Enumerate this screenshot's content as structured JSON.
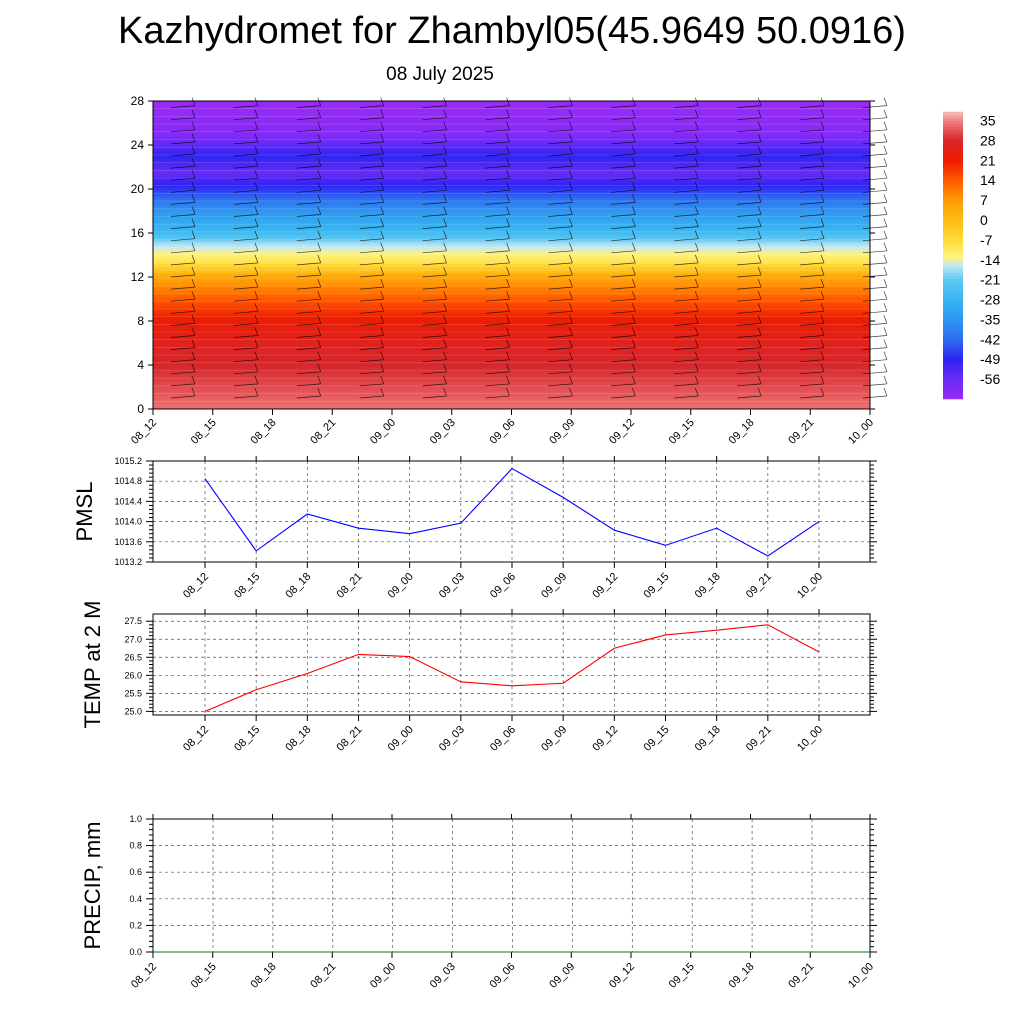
{
  "title": "Kazhydromet for Zhambyl05(45.9649 50.0916)",
  "subtitle": "08 July 2025",
  "chart_data": [
    {
      "type": "heatmap",
      "title": "",
      "xlabel": "",
      "ylabel": "",
      "x_tick_labels": [
        "08_12",
        "08_15",
        "08_18",
        "08_21",
        "09_00",
        "09_03",
        "09_06",
        "09_09",
        "09_12",
        "09_15",
        "09_18",
        "09_21",
        "10_00"
      ],
      "y_ticks": [
        0,
        4,
        8,
        12,
        16,
        20,
        24,
        28
      ],
      "ylim": [
        0,
        28
      ],
      "levels_temperature": [
        {
          "level": 0,
          "value": 34
        },
        {
          "level": 2,
          "value": 31
        },
        {
          "level": 4,
          "value": 28
        },
        {
          "level": 6,
          "value": 26
        },
        {
          "level": 8,
          "value": 22
        },
        {
          "level": 10,
          "value": 14
        },
        {
          "level": 12,
          "value": 5
        },
        {
          "level": 13.5,
          "value": -10
        },
        {
          "level": 15,
          "value": -17
        },
        {
          "level": 16,
          "value": -26
        },
        {
          "level": 18,
          "value": -35
        },
        {
          "level": 20,
          "value": -47
        },
        {
          "level": 21.5,
          "value": -56
        },
        {
          "level": 23,
          "value": -49
        },
        {
          "level": 25,
          "value": -60
        },
        {
          "level": 28,
          "value": -63
        }
      ],
      "colorbar_labels": [
        "35",
        "28",
        "21",
        "14",
        "7",
        "0",
        "-7",
        "-14",
        "-21",
        "-28",
        "-35",
        "-42",
        "-49",
        "-56"
      ],
      "colorbar_range": [
        -63,
        38
      ],
      "colorbar_stops": [
        {
          "value": -63,
          "color": "#9a2bf5"
        },
        {
          "value": -56,
          "color": "#6a2bf7"
        },
        {
          "value": -49,
          "color": "#2e23f2"
        },
        {
          "value": -42,
          "color": "#2f6cf0"
        },
        {
          "value": -35,
          "color": "#2e97f2"
        },
        {
          "value": -28,
          "color": "#36b4f2"
        },
        {
          "value": -21,
          "color": "#5fc9f2"
        },
        {
          "value": -16,
          "color": "#bfe8f5"
        },
        {
          "value": -13,
          "color": "#fff27a"
        },
        {
          "value": -7,
          "color": "#ffdc3a"
        },
        {
          "value": 0,
          "color": "#ffbd14"
        },
        {
          "value": 7,
          "color": "#ff9a05"
        },
        {
          "value": 14,
          "color": "#ff5a00"
        },
        {
          "value": 21,
          "color": "#ef1b00"
        },
        {
          "value": 28,
          "color": "#d7262b"
        },
        {
          "value": 35,
          "color": "#f08080"
        },
        {
          "value": 38,
          "color": "#f7bcbc"
        }
      ]
    },
    {
      "type": "line",
      "ylabel": "PMSL",
      "x": [
        "08_12",
        "08_15",
        "08_18",
        "08_21",
        "09_00",
        "09_03",
        "09_06",
        "09_09",
        "09_12",
        "09_15",
        "09_18",
        "09_21",
        "10_00"
      ],
      "values": [
        1014.85,
        1013.42,
        1014.15,
        1013.87,
        1013.76,
        1013.97,
        1015.05,
        1014.48,
        1013.83,
        1013.53,
        1013.87,
        1013.32,
        1014.0
      ],
      "ylim": [
        1013.2,
        1015.2
      ],
      "yticks": [
        "1013.2",
        "1013.6",
        "1014.0",
        "1014.4",
        "1014.8",
        "1015.2"
      ],
      "color": "#0000ff",
      "grid": true
    },
    {
      "type": "line",
      "ylabel": "TEMP at 2 M",
      "x": [
        "08_12",
        "08_15",
        "08_18",
        "08_21",
        "09_00",
        "09_03",
        "09_06",
        "09_09",
        "09_12",
        "09_15",
        "09_18",
        "09_21",
        "10_00"
      ],
      "values": [
        25.0,
        25.6,
        26.05,
        26.58,
        26.52,
        25.82,
        25.71,
        25.78,
        26.75,
        27.12,
        27.25,
        27.4,
        26.65
      ],
      "ylim": [
        24.9,
        27.7
      ],
      "yticks": [
        "25.0",
        "25.5",
        "26.0",
        "26.5",
        "27.0",
        "27.5"
      ],
      "color": "#ff0000",
      "grid": true
    },
    {
      "type": "line",
      "ylabel": "PRECIP, mm",
      "x": [
        "08_12",
        "08_15",
        "08_18",
        "08_21",
        "09_00",
        "09_03",
        "09_06",
        "09_09",
        "09_12",
        "09_15",
        "09_18",
        "09_21",
        "10_00"
      ],
      "values": [
        0,
        0,
        0,
        0,
        0,
        0,
        0,
        0,
        0,
        0,
        0,
        0,
        0
      ],
      "ylim": [
        0,
        1.0
      ],
      "yticks": [
        "0.0",
        "0.2",
        "0.4",
        "0.6",
        "0.8",
        "1.0"
      ],
      "color": "#008000",
      "grid": true
    }
  ]
}
